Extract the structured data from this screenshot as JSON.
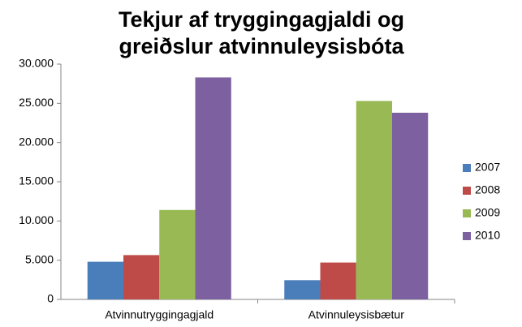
{
  "chart_data": {
    "type": "bar",
    "title": [
      "Tekjur af tryggingagjaldi og",
      "greiðslur atvinnuleysisbóta"
    ],
    "categories": [
      "Atvinnutryggingagjald",
      "Atvinnuleysisbætur"
    ],
    "series": [
      {
        "name": "2007",
        "color": "#4a7ebb",
        "values": [
          4800,
          2450
        ]
      },
      {
        "name": "2008",
        "color": "#be4b48",
        "values": [
          5650,
          4700
        ]
      },
      {
        "name": "2009",
        "color": "#98b954",
        "values": [
          11400,
          25300
        ]
      },
      {
        "name": "2010",
        "color": "#7d60a0",
        "values": [
          28300,
          23800
        ]
      }
    ],
    "ylim": [
      0,
      30000
    ],
    "yticks": [
      0,
      {
        "value": 5000,
        "label": "5.000"
      },
      {
        "value": 10000,
        "label": "10.000"
      },
      {
        "value": 15000,
        "label": "15.000"
      },
      {
        "value": 20000,
        "label": "20.000"
      },
      {
        "value": 25000,
        "label": "25.000"
      },
      {
        "value": 30000,
        "label": "30.000"
      }
    ],
    "grid": false,
    "legend": "right"
  }
}
